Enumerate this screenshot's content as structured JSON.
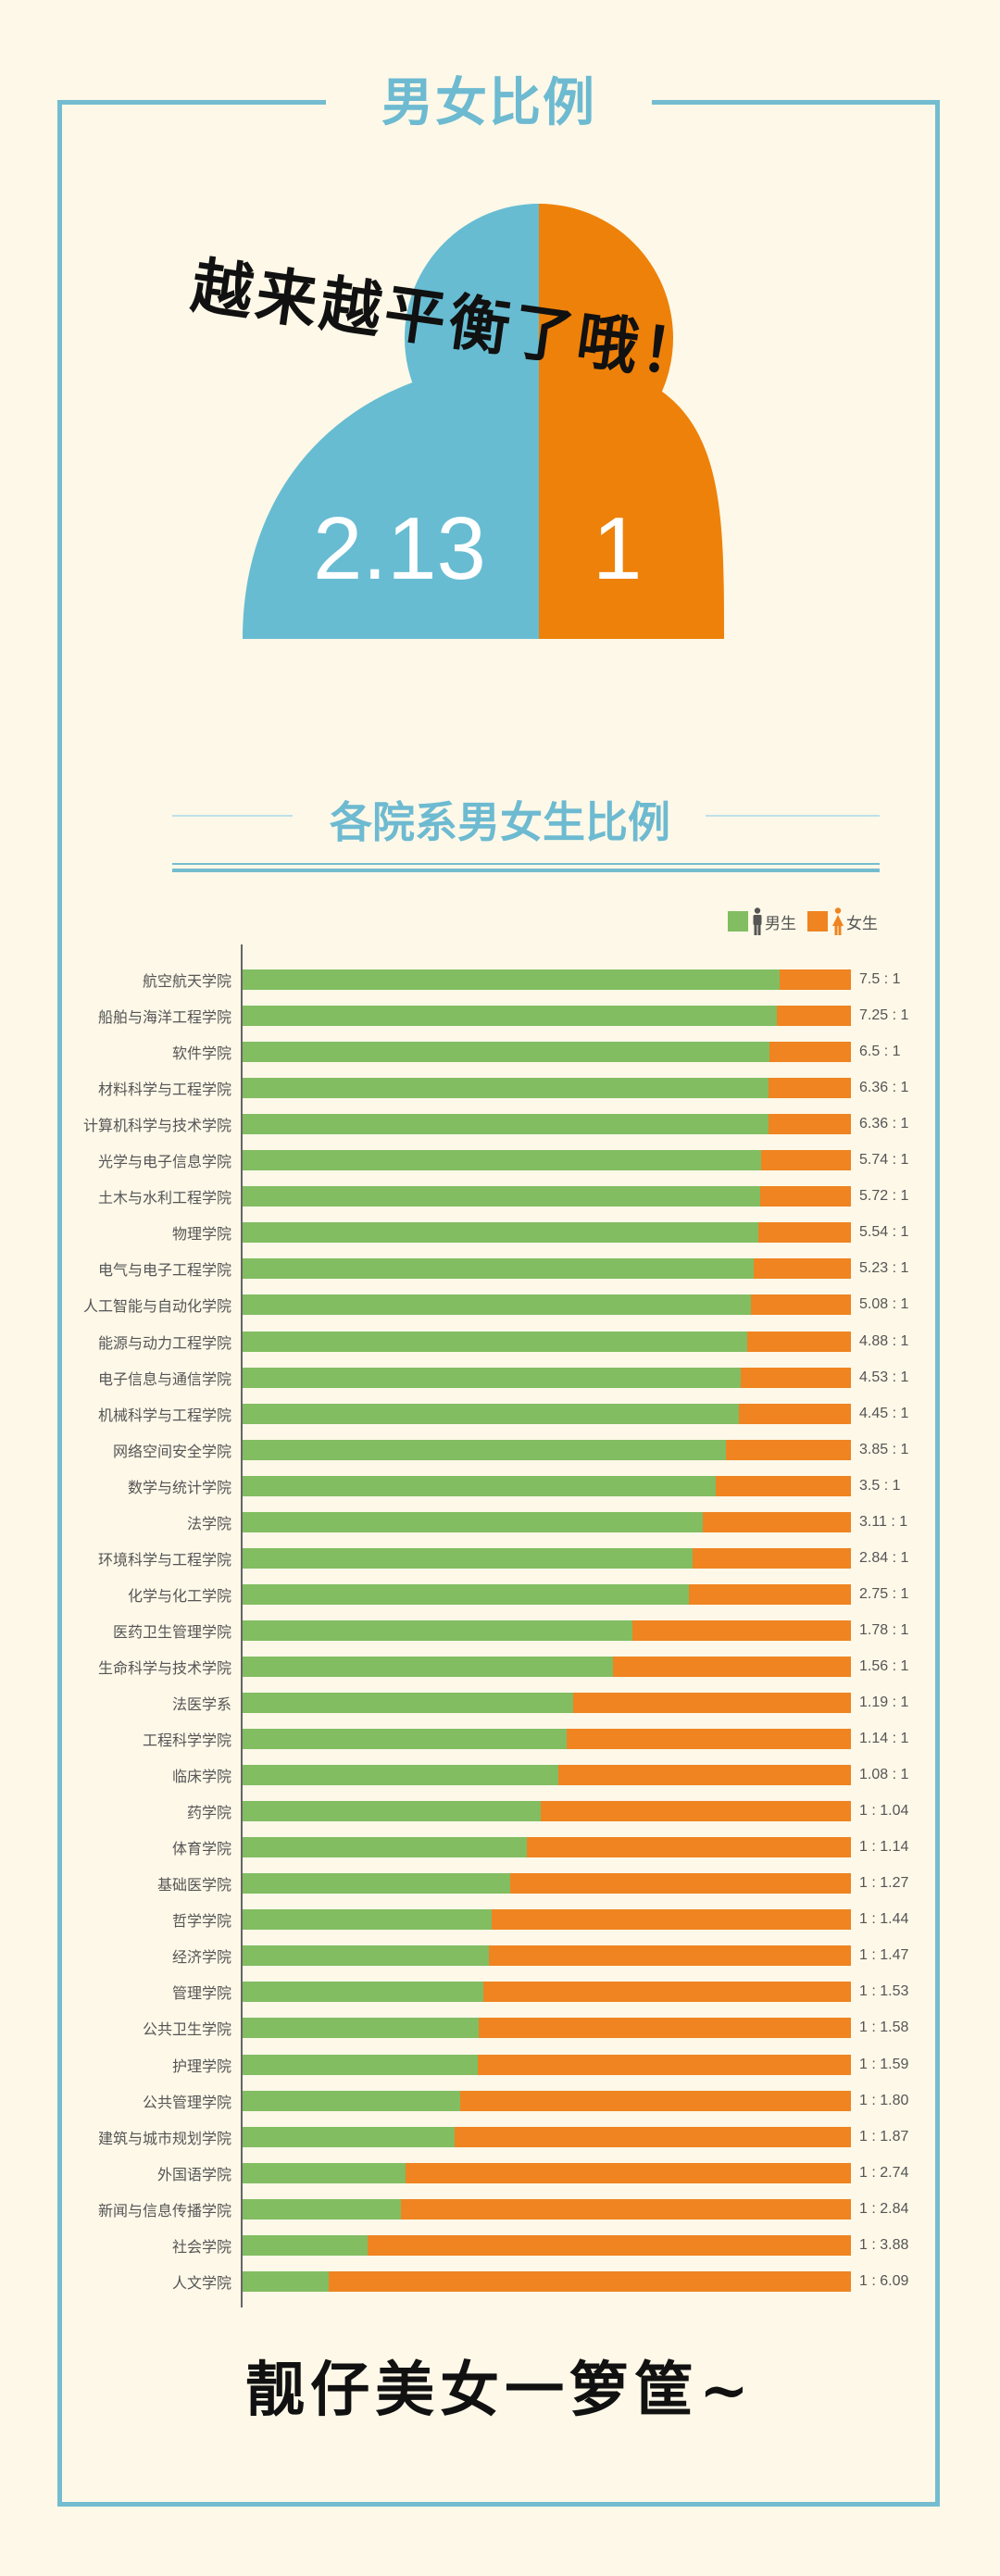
{
  "header": {
    "title": "男女比例"
  },
  "overall": {
    "slogan": "越来越平衡了哦！",
    "male_ratio": "2.13",
    "female_ratio": "1",
    "male_color": "#67bcd2",
    "female_color": "#ee8109"
  },
  "section": {
    "title": "各院系男女生比例"
  },
  "legend": {
    "male": {
      "label": "男生",
      "color": "#82bd62",
      "icon": "male-person-icon"
    },
    "female": {
      "label": "女生",
      "color": "#ef8421",
      "icon": "female-person-icon"
    }
  },
  "footer": {
    "text": "靓仔美女一箩筐~"
  },
  "chart_data": {
    "type": "bar",
    "stacked": true,
    "orientation": "horizontal",
    "normalized": true,
    "title": "各院系男女生比例",
    "xlabel": "",
    "ylabel": "",
    "legend_position": "top-right",
    "grid": false,
    "series_names": [
      "男生",
      "女生"
    ],
    "categories": [
      "航空航天学院",
      "船舶与海洋工程学院",
      "软件学院",
      "材料科学与工程学院",
      "计算机科学与技术学院",
      "光学与电子信息学院",
      "土木与水利工程学院",
      "物理学院",
      "电气与电子工程学院",
      "人工智能与自动化学院",
      "能源与动力工程学院",
      "电子信息与通信学院",
      "机械科学与工程学院",
      "网络空间安全学院",
      "数学与统计学院",
      "法学院",
      "环境科学与工程学院",
      "化学与化工学院",
      "医药卫生管理学院",
      "生命科学与技术学院",
      "法医学系",
      "工程科学学院",
      "临床学院",
      "药学院",
      "体育学院",
      "基础医学院",
      "哲学学院",
      "经济学院",
      "管理学院",
      "公共卫生学院",
      "护理学院",
      "公共管理学院",
      "建筑与城市规划学院",
      "外国语学院",
      "新闻与信息传播学院",
      "社会学院",
      "人文学院"
    ],
    "rows": [
      {
        "name": "航空航天学院",
        "male": 7.5,
        "female": 1,
        "label": "7.5 : 1"
      },
      {
        "name": "船舶与海洋工程学院",
        "male": 7.25,
        "female": 1,
        "label": "7.25 : 1"
      },
      {
        "name": "软件学院",
        "male": 6.5,
        "female": 1,
        "label": "6.5 : 1"
      },
      {
        "name": "材料科学与工程学院",
        "male": 6.36,
        "female": 1,
        "label": "6.36 : 1"
      },
      {
        "name": "计算机科学与技术学院",
        "male": 6.36,
        "female": 1,
        "label": "6.36 : 1"
      },
      {
        "name": "光学与电子信息学院",
        "male": 5.74,
        "female": 1,
        "label": "5.74 : 1"
      },
      {
        "name": "土木与水利工程学院",
        "male": 5.72,
        "female": 1,
        "label": "5.72 : 1"
      },
      {
        "name": "物理学院",
        "male": 5.54,
        "female": 1,
        "label": "5.54 : 1"
      },
      {
        "name": "电气与电子工程学院",
        "male": 5.23,
        "female": 1,
        "label": "5.23 : 1"
      },
      {
        "name": "人工智能与自动化学院",
        "male": 5.08,
        "female": 1,
        "label": "5.08 : 1"
      },
      {
        "name": "能源与动力工程学院",
        "male": 4.88,
        "female": 1,
        "label": "4.88 : 1"
      },
      {
        "name": "电子信息与通信学院",
        "male": 4.53,
        "female": 1,
        "label": "4.53 : 1"
      },
      {
        "name": "机械科学与工程学院",
        "male": 4.45,
        "female": 1,
        "label": "4.45 : 1"
      },
      {
        "name": "网络空间安全学院",
        "male": 3.85,
        "female": 1,
        "label": "3.85 : 1"
      },
      {
        "name": "数学与统计学院",
        "male": 3.5,
        "female": 1,
        "label": "3.5 : 1"
      },
      {
        "name": "法学院",
        "male": 3.11,
        "female": 1,
        "label": "3.11 : 1"
      },
      {
        "name": "环境科学与工程学院",
        "male": 2.84,
        "female": 1,
        "label": "2.84 : 1"
      },
      {
        "name": "化学与化工学院",
        "male": 2.75,
        "female": 1,
        "label": "2.75 : 1"
      },
      {
        "name": "医药卫生管理学院",
        "male": 1.78,
        "female": 1,
        "label": "1.78 : 1"
      },
      {
        "name": "生命科学与技术学院",
        "male": 1.56,
        "female": 1,
        "label": "1.56 : 1"
      },
      {
        "name": "法医学系",
        "male": 1.19,
        "female": 1,
        "label": "1.19 : 1"
      },
      {
        "name": "工程科学学院",
        "male": 1.14,
        "female": 1,
        "label": "1.14 : 1"
      },
      {
        "name": "临床学院",
        "male": 1.08,
        "female": 1,
        "label": "1.08 : 1"
      },
      {
        "name": "药学院",
        "male": 1,
        "female": 1.04,
        "label": "1 : 1.04"
      },
      {
        "name": "体育学院",
        "male": 1,
        "female": 1.14,
        "label": "1 : 1.14"
      },
      {
        "name": "基础医学院",
        "male": 1,
        "female": 1.27,
        "label": "1 : 1.27"
      },
      {
        "name": "哲学学院",
        "male": 1,
        "female": 1.44,
        "label": "1 : 1.44"
      },
      {
        "name": "经济学院",
        "male": 1,
        "female": 1.47,
        "label": "1 : 1.47"
      },
      {
        "name": "管理学院",
        "male": 1,
        "female": 1.53,
        "label": "1 : 1.53"
      },
      {
        "name": "公共卫生学院",
        "male": 1,
        "female": 1.58,
        "label": "1 : 1.58"
      },
      {
        "name": "护理学院",
        "male": 1,
        "female": 1.59,
        "label": "1 : 1.59"
      },
      {
        "name": "公共管理学院",
        "male": 1,
        "female": 1.8,
        "label": "1 : 1.80"
      },
      {
        "name": "建筑与城市规划学院",
        "male": 1,
        "female": 1.87,
        "label": "1 : 1.87"
      },
      {
        "name": "外国语学院",
        "male": 1,
        "female": 2.74,
        "label": "1 : 2.74"
      },
      {
        "name": "新闻与信息传播学院",
        "male": 1,
        "female": 2.84,
        "label": "1 : 2.84"
      },
      {
        "name": "社会学院",
        "male": 1,
        "female": 3.88,
        "label": "1 : 3.88"
      },
      {
        "name": "人文学院",
        "male": 1,
        "female": 6.09,
        "label": "1 : 6.09"
      }
    ],
    "overall_ratio": {
      "male": 2.13,
      "female": 1
    }
  }
}
